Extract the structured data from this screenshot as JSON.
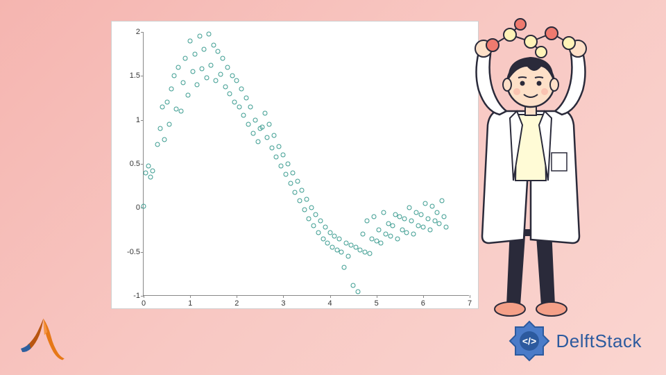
{
  "background_gradient": [
    "#f5b5b0",
    "#f8c8c3",
    "#fad5d0"
  ],
  "chart": {
    "type": "scatter",
    "background_color": "#ffffff",
    "border_color": "#d0d0d0",
    "axis_color": "#888888",
    "marker_color": "#3a9b8f",
    "marker_style": "circle",
    "marker_size": 7,
    "marker_fill": "none",
    "xlim": [
      0,
      7
    ],
    "ylim": [
      -1,
      2
    ],
    "xticks": [
      0,
      1,
      2,
      3,
      4,
      5,
      6,
      7
    ],
    "yticks": [
      -1,
      -0.5,
      0,
      0.5,
      1,
      1.5,
      2
    ],
    "tick_fontsize": 11,
    "tick_color": "#333333",
    "data": [
      [
        0.0,
        0.02
      ],
      [
        0.05,
        0.4
      ],
      [
        0.1,
        0.48
      ],
      [
        0.15,
        0.35
      ],
      [
        0.2,
        0.42
      ],
      [
        0.3,
        0.72
      ],
      [
        0.35,
        0.9
      ],
      [
        0.4,
        1.15
      ],
      [
        0.45,
        0.78
      ],
      [
        0.5,
        1.2
      ],
      [
        0.55,
        0.95
      ],
      [
        0.6,
        1.35
      ],
      [
        0.65,
        1.5
      ],
      [
        0.7,
        1.12
      ],
      [
        0.75,
        1.6
      ],
      [
        0.8,
        1.1
      ],
      [
        0.85,
        1.42
      ],
      [
        0.9,
        1.7
      ],
      [
        0.95,
        1.28
      ],
      [
        1.0,
        1.9
      ],
      [
        1.05,
        1.55
      ],
      [
        1.1,
        1.75
      ],
      [
        1.15,
        1.4
      ],
      [
        1.2,
        1.95
      ],
      [
        1.25,
        1.58
      ],
      [
        1.3,
        1.8
      ],
      [
        1.35,
        1.48
      ],
      [
        1.4,
        1.98
      ],
      [
        1.45,
        1.62
      ],
      [
        1.5,
        1.85
      ],
      [
        1.55,
        1.45
      ],
      [
        1.6,
        1.78
      ],
      [
        1.65,
        1.52
      ],
      [
        1.7,
        1.7
      ],
      [
        1.75,
        1.38
      ],
      [
        1.8,
        1.6
      ],
      [
        1.85,
        1.3
      ],
      [
        1.9,
        1.5
      ],
      [
        1.95,
        1.2
      ],
      [
        2.0,
        1.45
      ],
      [
        2.05,
        1.15
      ],
      [
        2.1,
        1.35
      ],
      [
        2.15,
        1.05
      ],
      [
        2.2,
        1.25
      ],
      [
        2.25,
        0.95
      ],
      [
        2.3,
        1.15
      ],
      [
        2.35,
        0.85
      ],
      [
        2.4,
        1.0
      ],
      [
        2.45,
        0.75
      ],
      [
        2.5,
        0.9
      ],
      [
        2.55,
        0.92
      ],
      [
        2.6,
        1.08
      ],
      [
        2.65,
        0.8
      ],
      [
        2.7,
        0.95
      ],
      [
        2.75,
        0.68
      ],
      [
        2.8,
        0.82
      ],
      [
        2.85,
        0.58
      ],
      [
        2.9,
        0.7
      ],
      [
        2.95,
        0.48
      ],
      [
        3.0,
        0.6
      ],
      [
        3.05,
        0.38
      ],
      [
        3.1,
        0.5
      ],
      [
        3.15,
        0.28
      ],
      [
        3.2,
        0.4
      ],
      [
        3.25,
        0.18
      ],
      [
        3.3,
        0.3
      ],
      [
        3.35,
        0.08
      ],
      [
        3.4,
        0.2
      ],
      [
        3.45,
        -0.02
      ],
      [
        3.5,
        0.1
      ],
      [
        3.55,
        -0.12
      ],
      [
        3.6,
        0.0
      ],
      [
        3.65,
        -0.2
      ],
      [
        3.7,
        -0.08
      ],
      [
        3.75,
        -0.28
      ],
      [
        3.8,
        -0.15
      ],
      [
        3.85,
        -0.35
      ],
      [
        3.9,
        -0.22
      ],
      [
        3.95,
        -0.4
      ],
      [
        4.0,
        -0.28
      ],
      [
        4.05,
        -0.45
      ],
      [
        4.1,
        -0.32
      ],
      [
        4.15,
        -0.48
      ],
      [
        4.2,
        -0.35
      ],
      [
        4.25,
        -0.5
      ],
      [
        4.3,
        -0.68
      ],
      [
        4.35,
        -0.4
      ],
      [
        4.4,
        -0.55
      ],
      [
        4.45,
        -0.42
      ],
      [
        4.5,
        -0.88
      ],
      [
        4.55,
        -0.45
      ],
      [
        4.6,
        -0.95
      ],
      [
        4.65,
        -0.48
      ],
      [
        4.7,
        -0.3
      ],
      [
        4.75,
        -0.5
      ],
      [
        4.8,
        -0.15
      ],
      [
        4.85,
        -0.52
      ],
      [
        4.9,
        -0.35
      ],
      [
        4.95,
        -0.1
      ],
      [
        5.0,
        -0.38
      ],
      [
        5.05,
        -0.25
      ],
      [
        5.1,
        -0.4
      ],
      [
        5.15,
        -0.05
      ],
      [
        5.2,
        -0.3
      ],
      [
        5.25,
        -0.18
      ],
      [
        5.3,
        -0.32
      ],
      [
        5.35,
        -0.2
      ],
      [
        5.4,
        -0.08
      ],
      [
        5.45,
        -0.35
      ],
      [
        5.5,
        -0.1
      ],
      [
        5.55,
        -0.25
      ],
      [
        5.6,
        -0.12
      ],
      [
        5.65,
        -0.28
      ],
      [
        5.7,
        0.0
      ],
      [
        5.75,
        -0.15
      ],
      [
        5.8,
        -0.3
      ],
      [
        5.85,
        -0.05
      ],
      [
        5.9,
        -0.2
      ],
      [
        5.95,
        -0.08
      ],
      [
        6.0,
        -0.22
      ],
      [
        6.05,
        0.05
      ],
      [
        6.1,
        -0.12
      ],
      [
        6.15,
        -0.25
      ],
      [
        6.2,
        0.02
      ],
      [
        6.25,
        -0.15
      ],
      [
        6.3,
        -0.05
      ],
      [
        6.35,
        -0.18
      ],
      [
        6.4,
        0.08
      ],
      [
        6.45,
        -0.1
      ],
      [
        6.5,
        -0.22
      ]
    ]
  },
  "brand": {
    "name": "DelftStack",
    "text_color": "#2c5a9e",
    "icon_colors": {
      "border": "#2c5a9e",
      "badge": "#4a7bc8",
      "arrows": "#ffffff"
    }
  },
  "matlab_logo_colors": {
    "orange": "#e67817",
    "dark_orange": "#b85510",
    "blue": "#2d5f9e"
  },
  "scientist_colors": {
    "coat": "#ffffff",
    "coat_outline": "#2a2a3a",
    "shirt": "#fffbd6",
    "pants": "#2a2a3a",
    "skin": "#fde0c8",
    "hair": "#2a2a3a",
    "shoes": "#f5a088",
    "molecule_red": "#ef7a6f",
    "molecule_yellow": "#fff3b8"
  }
}
